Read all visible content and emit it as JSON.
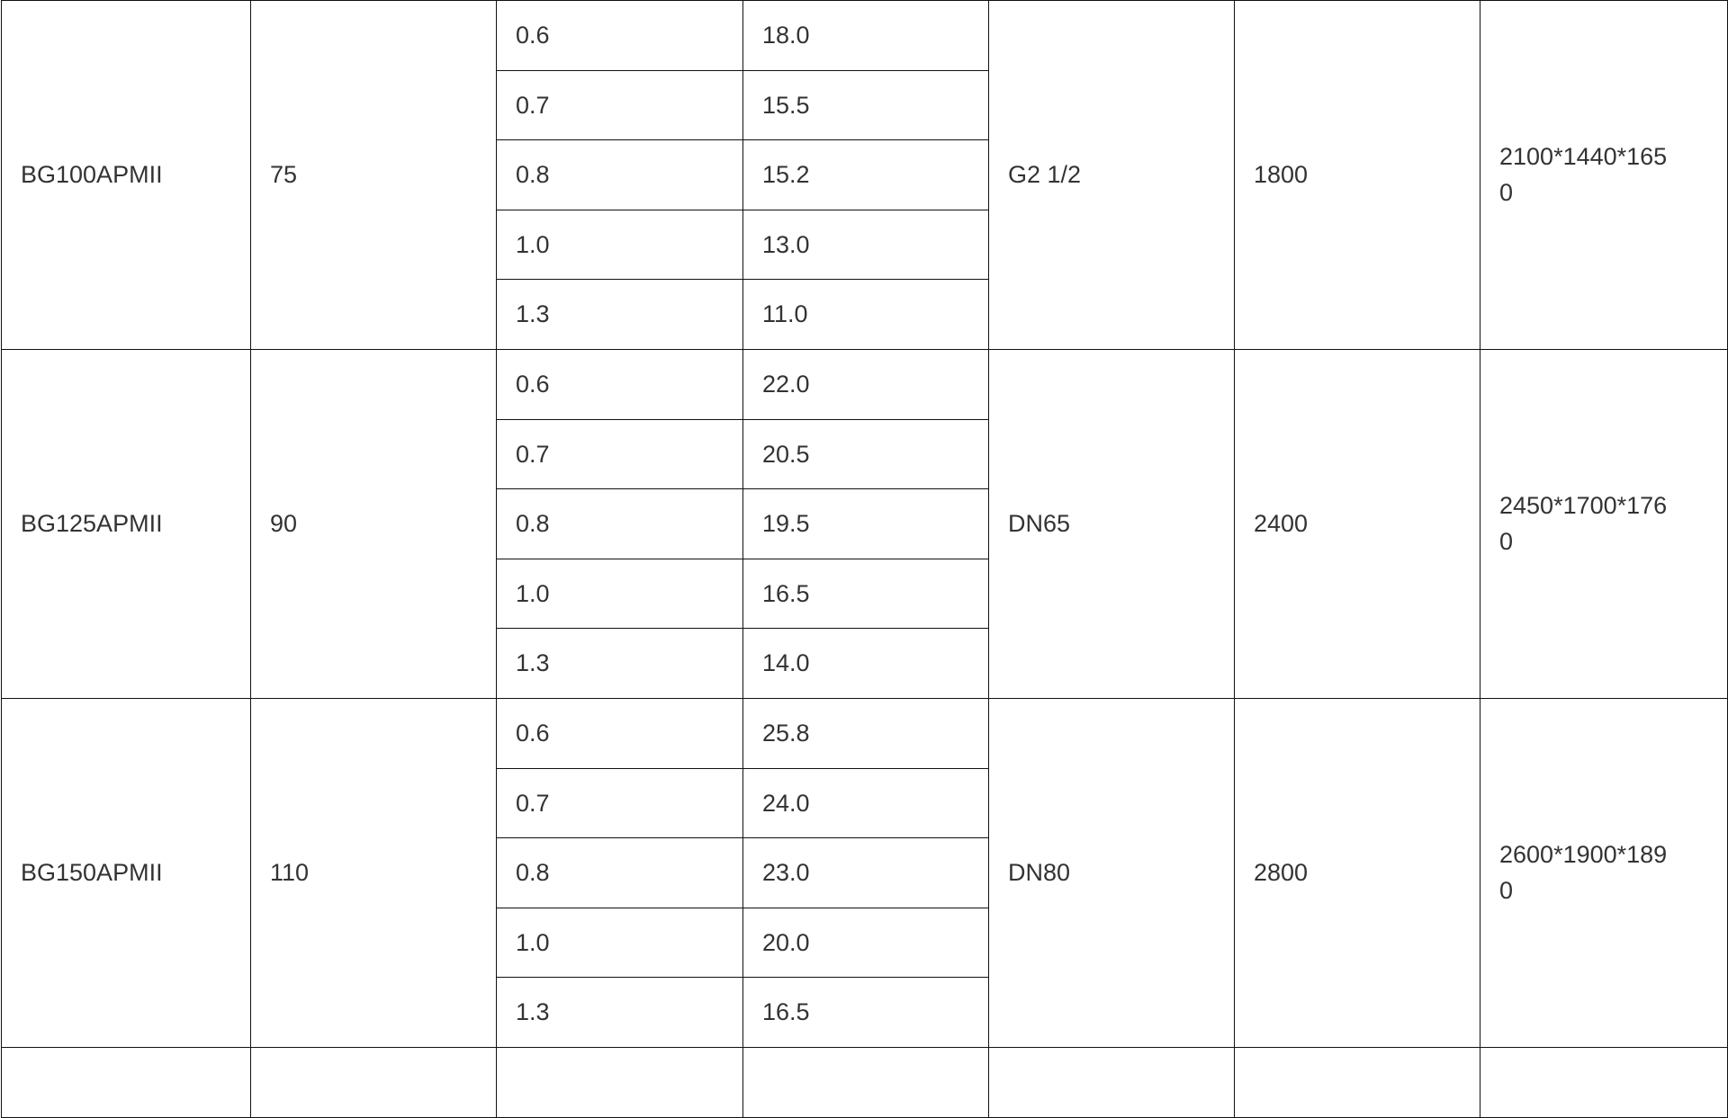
{
  "table": {
    "rows": [
      {
        "model": "BG100APMII",
        "col2": "75",
        "pressures": [
          "0.6",
          "0.7",
          "0.8",
          "1.0",
          "1.3"
        ],
        "flows": [
          "18.0",
          "15.5",
          "15.2",
          "13.0",
          "11.0"
        ],
        "port": "G2 1/2",
        "weight": "1800",
        "dims": "2100*1440*1650"
      },
      {
        "model": "BG125APMII",
        "col2": "90",
        "pressures": [
          "0.6",
          "0.7",
          "0.8",
          "1.0",
          "1.3"
        ],
        "flows": [
          "22.0",
          "20.5",
          "19.5",
          "16.5",
          "14.0"
        ],
        "port": "DN65",
        "weight": "2400",
        "dims": "2450*1700*1760"
      },
      {
        "model": "BG150APMII",
        "col2": "110",
        "pressures": [
          "0.6",
          "0.7",
          "0.8",
          "1.0",
          "1.3"
        ],
        "flows": [
          "25.8",
          "24.0",
          "23.0",
          "20.0",
          "16.5"
        ],
        "port": "DN80",
        "weight": "2800",
        "dims": "2600*1900*1890"
      }
    ]
  }
}
